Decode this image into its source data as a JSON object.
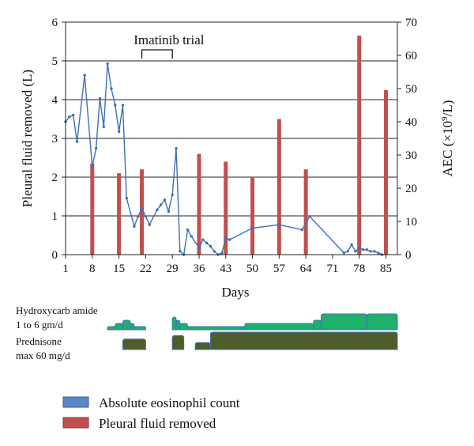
{
  "chart_data": {
    "type": "bar+line",
    "colors": {
      "bars": "#c0504d",
      "line": "#3f6fb5",
      "treatment_green": "#1db16a",
      "treatment_olive": "#4e5e2a",
      "treatment_blue_edge": "#3f6fb5"
    },
    "xlabel": "Days",
    "ylabel_left": "Pleural fluid removed (L)",
    "ylabel_right_prefix": "AEC (×10",
    "ylabel_right_sup": "9",
    "ylabel_right_suffix": "/L)",
    "xlim": [
      1,
      88
    ],
    "ylim_left": [
      0,
      6
    ],
    "ylim_right": [
      0,
      70
    ],
    "x_ticks": [
      "1",
      "8",
      "15",
      "22",
      "29",
      "36",
      "43",
      "50",
      "57",
      "64",
      "71",
      "78",
      "85"
    ],
    "y_left_ticks": [
      "0",
      "1",
      "2",
      "3",
      "4",
      "5",
      "6"
    ],
    "y_right_ticks": [
      "0",
      "10",
      "20",
      "30",
      "40",
      "50",
      "60",
      "70"
    ],
    "grid": "horizontal-major-left",
    "annotation": {
      "label": "Imatinib trial",
      "start_day": 21,
      "end_day": 29
    },
    "bars": {
      "name": "Pleural fluid removed",
      "x": [
        8,
        15,
        21,
        36,
        43,
        50,
        57,
        64,
        78,
        85
      ],
      "values": [
        2.35,
        2.1,
        2.2,
        2.6,
        2.4,
        2.0,
        3.5,
        2.2,
        5.65,
        4.25
      ]
    },
    "line": {
      "name": "Absolute eosinophil count",
      "axis": "right",
      "x": [
        1,
        2,
        3,
        4,
        6,
        8,
        9,
        10,
        11,
        12,
        13,
        14,
        15,
        16,
        17,
        19,
        20,
        21,
        22,
        23,
        25,
        26,
        27,
        28,
        29,
        30,
        31,
        32,
        33,
        34,
        36,
        37,
        38,
        39,
        40,
        41,
        42,
        43,
        44,
        50,
        57,
        63,
        65,
        74,
        75,
        76,
        77,
        78,
        79,
        80,
        81,
        82,
        83,
        84
      ],
      "values": [
        40,
        41.5,
        42,
        34,
        54,
        26.5,
        32,
        47,
        38.5,
        57.5,
        50,
        45,
        37,
        45,
        17,
        8.5,
        11.5,
        14,
        11.5,
        9,
        13.5,
        15,
        16.5,
        13,
        18,
        32,
        1,
        0,
        7.5,
        5.5,
        2,
        4.5,
        3.5,
        2.5,
        1,
        0,
        0.5,
        5,
        4.5,
        8,
        9,
        7.5,
        11.5,
        0.5,
        1,
        3,
        1,
        2,
        1.5,
        1.5,
        1,
        1,
        0.5,
        0
      ]
    },
    "treatments": [
      {
        "label_lines": [
          "Hydroxycarb amide",
          "1 to 6 gm/d"
        ],
        "color_fill": "#1db16a",
        "color_edge": "#3f6fb5",
        "segments": [
          {
            "start_day": 12,
            "end_day": 15,
            "level": 1
          },
          {
            "start_day": 14,
            "end_day": 16,
            "level": 2
          },
          {
            "start_day": 16,
            "end_day": 18,
            "level": 3
          },
          {
            "start_day": 18,
            "end_day": 19,
            "level": 2
          },
          {
            "start_day": 19,
            "end_day": 22,
            "level": 1
          },
          {
            "start_day": 29,
            "end_day": 30,
            "level": 4
          },
          {
            "start_day": 30,
            "end_day": 31,
            "level": 3
          },
          {
            "start_day": 31,
            "end_day": 33,
            "level": 2
          },
          {
            "start_day": 33,
            "end_day": 48,
            "level": 1
          },
          {
            "start_day": 48,
            "end_day": 66,
            "level": 2
          },
          {
            "start_day": 66,
            "end_day": 68,
            "level": 3
          },
          {
            "start_day": 68,
            "end_day": 80,
            "level": 5
          },
          {
            "start_day": 80,
            "end_day": 88,
            "level": 5
          }
        ]
      },
      {
        "label_lines": [
          "Prednisone",
          "max 60 mg/d"
        ],
        "color_fill": "#4e5e2a",
        "color_edge": "#3f6fb5",
        "segments": [
          {
            "start_day": 16,
            "end_day": 22,
            "level": 3
          },
          {
            "start_day": 29,
            "end_day": 32,
            "level": 4
          },
          {
            "start_day": 35,
            "end_day": 39,
            "level": 2
          },
          {
            "start_day": 39,
            "end_day": 88,
            "level": 5
          }
        ]
      }
    ],
    "legend": [
      {
        "label": "Absolute eosinophil count",
        "color": "#3f6fb5"
      },
      {
        "label": "Pleural fluid removed",
        "color": "#c0504d"
      }
    ],
    "legend_position": "bottom-left"
  }
}
